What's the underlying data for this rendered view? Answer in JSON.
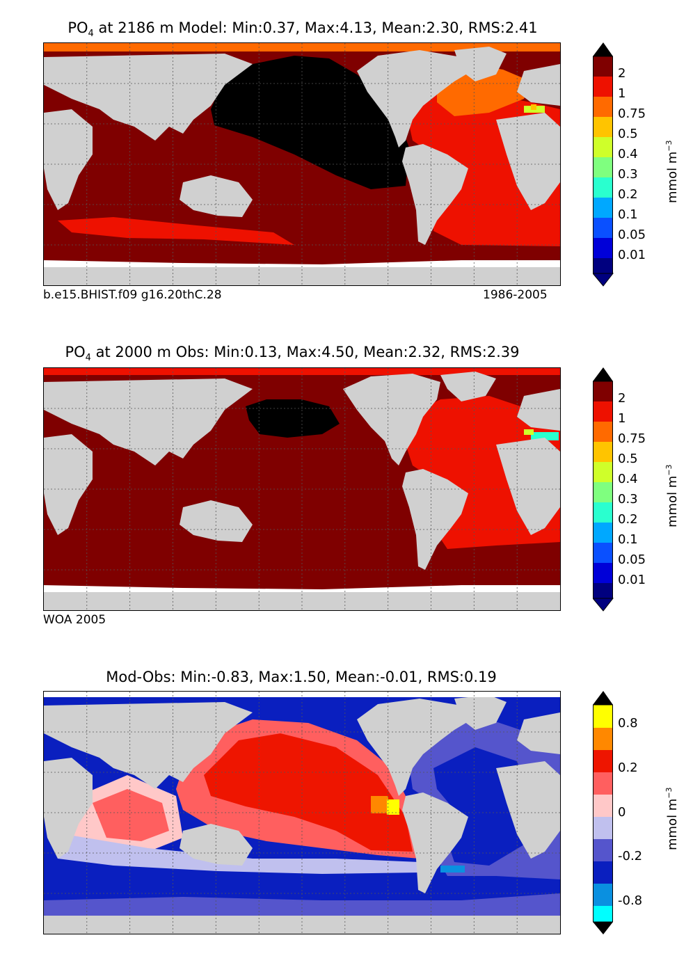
{
  "panels": [
    {
      "title_var": "PO",
      "title_sub": "4",
      "title_rest": " at 2186 m Model: Min:0.37, Max:4.13, Mean:2.30, RMS:2.41",
      "caption_left": "b.e15.BHIST.f09 g16.20thC.28",
      "caption_right": "1986-2005",
      "colorbar": {
        "ticks": [
          "2",
          "1",
          "0.75",
          "0.5",
          "0.4",
          "0.3",
          "0.2",
          "0.1",
          "0.05",
          "0.01"
        ],
        "units": "mmol m",
        "units_exp": "−3"
      }
    },
    {
      "title_var": "PO",
      "title_sub": "4",
      "title_rest": " at 2000 m Obs: Min:0.13, Max:4.50, Mean:2.32, RMS:2.39",
      "caption_left": "WOA 2005",
      "caption_right": "",
      "colorbar": {
        "ticks": [
          "2",
          "1",
          "0.75",
          "0.5",
          "0.4",
          "0.3",
          "0.2",
          "0.1",
          "0.05",
          "0.01"
        ],
        "units": "mmol m",
        "units_exp": "−3"
      }
    },
    {
      "title_text": "Mod-Obs: Min:-0.83, Max:1.50, Mean:-0.01, RMS:0.19",
      "colorbar": {
        "ticks": [
          "0.8",
          "0.2",
          "0",
          "-0.2",
          "-0.8"
        ],
        "units": "mmol m",
        "units_exp": "−3"
      }
    }
  ],
  "chart_data": [
    {
      "type": "heatmap",
      "title": "PO4 at 2186 m Model: Min:0.37, Max:4.13, Mean:2.30, RMS:2.41",
      "field": "PO4 concentration, model",
      "depth_m": 2186,
      "stats": {
        "min": 0.37,
        "max": 4.13,
        "mean": 2.3,
        "rms": 2.41
      },
      "colorbar_levels": [
        0.01,
        0.05,
        0.1,
        0.2,
        0.3,
        0.4,
        0.5,
        0.75,
        1,
        2
      ],
      "colors": [
        "#00007f",
        "#0000d8",
        "#0a50ff",
        "#00a8ff",
        "#2affcf",
        "#7fff7f",
        "#cfff2a",
        "#ffc400",
        "#ff6a00",
        "#ee1100",
        "#7f0000",
        "#000000"
      ],
      "label_left": "b.e15.BHIST.f09 g16.20thC.28",
      "label_right": "1986-2005"
    },
    {
      "type": "heatmap",
      "title": "PO4 at 2000 m Obs: Min:0.13, Max:4.50, Mean:2.32, RMS:2.39",
      "field": "PO4 concentration, observed",
      "depth_m": 2000,
      "stats": {
        "min": 0.13,
        "max": 4.5,
        "mean": 2.32,
        "rms": 2.39
      },
      "colorbar_levels": [
        0.01,
        0.05,
        0.1,
        0.2,
        0.3,
        0.4,
        0.5,
        0.75,
        1,
        2
      ],
      "label_left": "WOA 2005"
    },
    {
      "type": "heatmap",
      "title": "Mod-Obs: Min:-0.83, Max:1.50, Mean:-0.01, RMS:0.19",
      "field": "PO4 difference, model minus observed",
      "stats": {
        "min": -0.83,
        "max": 1.5,
        "mean": -0.01,
        "rms": 0.19
      },
      "colorbar_ticks": [
        -0.8,
        -0.2,
        0,
        0.2,
        0.8
      ],
      "colors": [
        "#00ffff",
        "#0a90e0",
        "#0a1fbf",
        "#5555cc",
        "#c0c0ee",
        "#ffc8c8",
        "#ff5f5f",
        "#ee1500",
        "#ff8800",
        "#ffff00"
      ]
    }
  ],
  "palette": {
    "land": "#d0d0d0",
    "missing": "#ffffff",
    "black": "#000000",
    "darkred": "#7f0000",
    "red": "#ee1100",
    "orange": "#ff6a00",
    "amber": "#ffc400",
    "yellowgreen": "#cfff2a",
    "cyan": "#2affcf",
    "diffBlue": "#0a1fbf",
    "diffMidBlue": "#5555cc",
    "diffLightBlue": "#c0c0ee",
    "diffPink": "#ffc8c8",
    "diffSalmon": "#ff5f5f",
    "diffRed": "#ee1500",
    "diffOrange": "#ff8800",
    "diffYellow": "#ffff00",
    "diffSky": "#0a90e0"
  }
}
